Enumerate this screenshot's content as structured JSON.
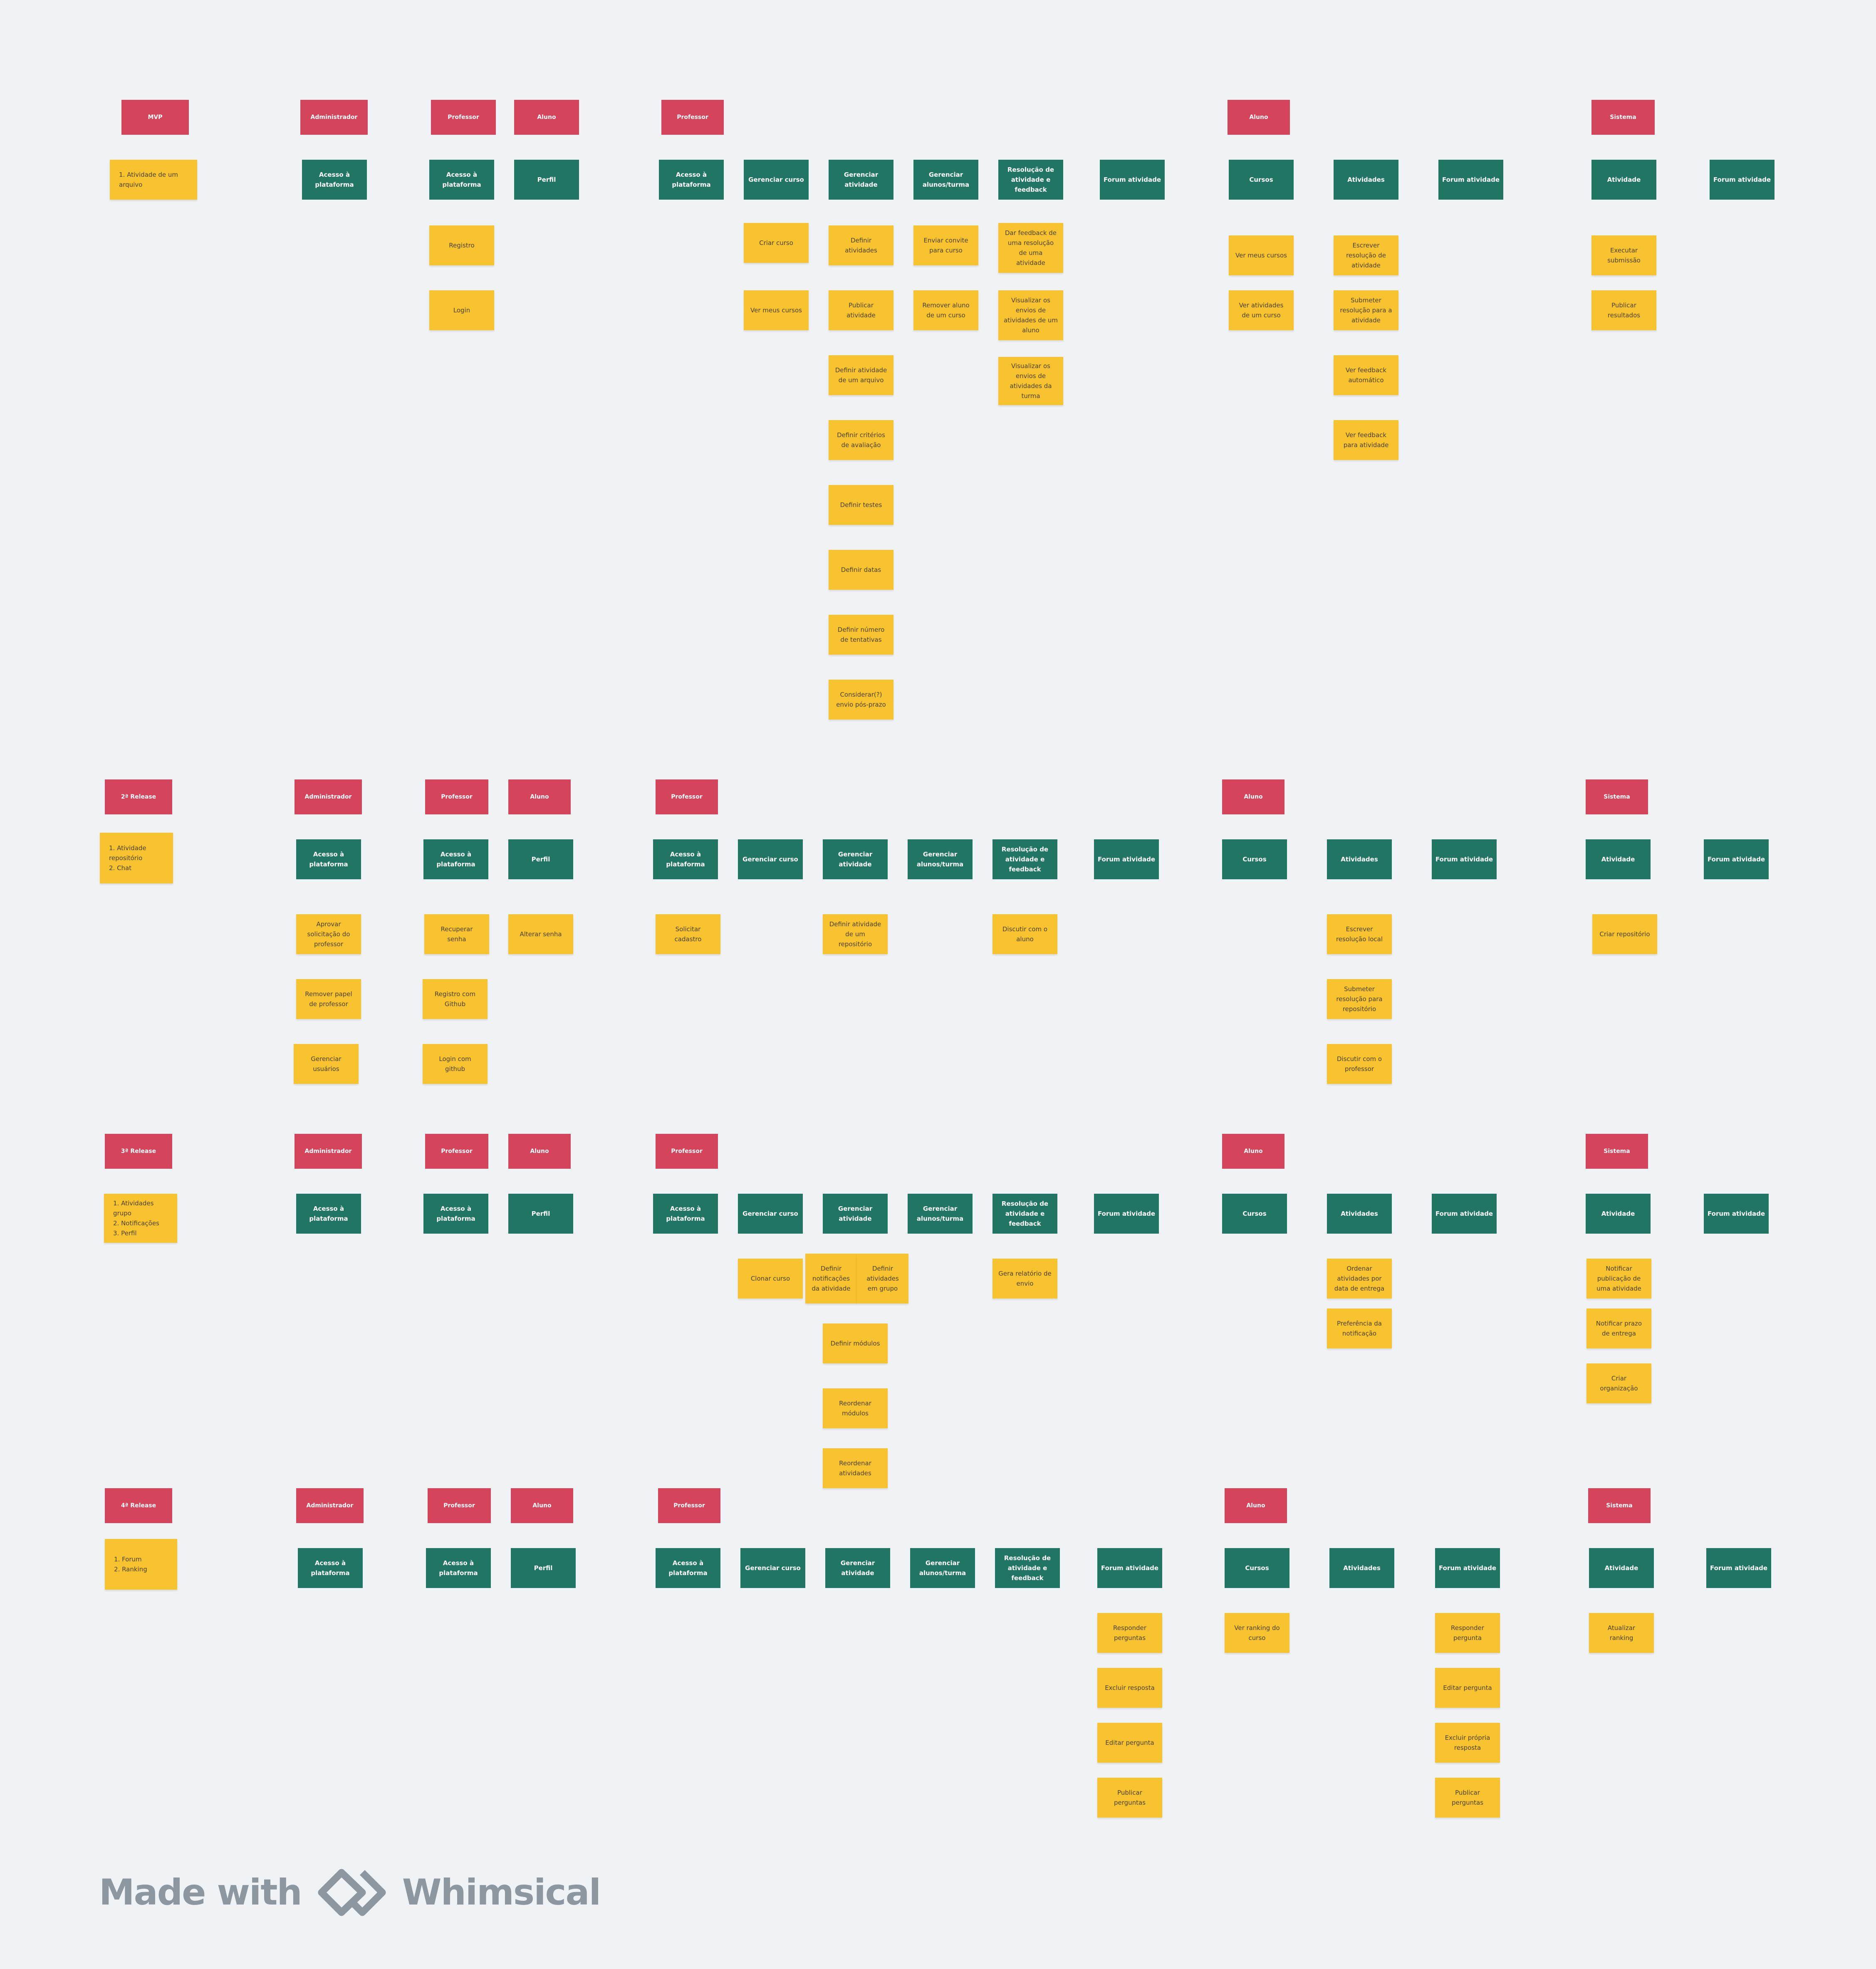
{
  "colors": {
    "background": "#f0f3f6",
    "role": "#d4445a",
    "activity": "#217563",
    "story": "#f7c32e",
    "footer": "#8d979f"
  },
  "notes": [
    {
      "t": "MVP",
      "c": "red"
    },
    {
      "t": "Administrador",
      "c": "red"
    },
    {
      "t": "Professor",
      "c": "red"
    },
    {
      "t": "Aluno",
      "c": "red"
    },
    {
      "t": "Professor",
      "c": "red"
    },
    {
      "t": "Aluno",
      "c": "red"
    },
    {
      "t": "Sistema",
      "c": "red"
    },
    {
      "t": "1.  Atividade de um\narquivo",
      "c": "yellow"
    },
    {
      "t": "Acesso à\nplataforma",
      "c": "green"
    },
    {
      "t": "Acesso à\nplataforma",
      "c": "green"
    },
    {
      "t": "Perfil",
      "c": "green"
    },
    {
      "t": "Acesso à\nplataforma",
      "c": "green"
    },
    {
      "t": "Gerenciar curso",
      "c": "green"
    },
    {
      "t": "Gerenciar\natividade",
      "c": "green"
    },
    {
      "t": "Gerenciar\nalunos/turma",
      "c": "green"
    },
    {
      "t": "Resolução de\natividade e\nfeedback",
      "c": "green"
    },
    {
      "t": "Forum atividade",
      "c": "green"
    },
    {
      "t": "Cursos",
      "c": "green"
    },
    {
      "t": "Atividades",
      "c": "green"
    },
    {
      "t": "Forum atividade",
      "c": "green"
    },
    {
      "t": "Atividade",
      "c": "green"
    },
    {
      "t": "Forum atividade",
      "c": "green"
    },
    {
      "t": "Registro",
      "c": "yellow"
    },
    {
      "t": "Login",
      "c": "yellow"
    },
    {
      "t": "Criar curso",
      "c": "yellow"
    },
    {
      "t": "Ver meus cursos",
      "c": "yellow"
    },
    {
      "t": "Definir\natividades",
      "c": "yellow"
    },
    {
      "t": "Publicar\natividade",
      "c": "yellow"
    },
    {
      "t": "Definir atividade\nde um arquivo",
      "c": "yellow"
    },
    {
      "t": "Definir critérios\nde avaliação",
      "c": "yellow"
    },
    {
      "t": "Definir testes",
      "c": "yellow"
    },
    {
      "t": "Definir datas",
      "c": "yellow"
    },
    {
      "t": "Definir número\nde tentativas",
      "c": "yellow"
    },
    {
      "t": "Considerar(?)\nenvio pós-prazo",
      "c": "yellow"
    },
    {
      "t": "Enviar convite\npara curso",
      "c": "yellow"
    },
    {
      "t": "Remover aluno\nde um curso",
      "c": "yellow"
    },
    {
      "t": "Dar feedback de\numa resolução\nde uma\natividade",
      "c": "yellow"
    },
    {
      "t": "Visualizar os\nenvios de\natividades de um\naluno",
      "c": "yellow"
    },
    {
      "t": "Visualizar os\nenvios de\natividades da\nturma",
      "c": "yellow"
    },
    {
      "t": "Ver meus cursos",
      "c": "yellow"
    },
    {
      "t": "Ver atividades\nde um curso",
      "c": "yellow"
    },
    {
      "t": "Escrever\nresolução de\natividade",
      "c": "yellow"
    },
    {
      "t": "Submeter\nresolução para a\natividade",
      "c": "yellow"
    },
    {
      "t": "Ver feedback\nautomático",
      "c": "yellow"
    },
    {
      "t": "Ver feedback\npara atividade",
      "c": "yellow"
    },
    {
      "t": "Executar\nsubmissão",
      "c": "yellow"
    },
    {
      "t": "Publicar\nresultados",
      "c": "yellow"
    },
    {
      "t": "2ª Release",
      "c": "red"
    },
    {
      "t": "Administrador",
      "c": "red"
    },
    {
      "t": "Professor",
      "c": "red"
    },
    {
      "t": "Aluno",
      "c": "red"
    },
    {
      "t": "Professor",
      "c": "red"
    },
    {
      "t": "Aluno",
      "c": "red"
    },
    {
      "t": "Sistema",
      "c": "red"
    },
    {
      "t": "1.  Atividade\n     repositório\n2.  Chat",
      "c": "yellow"
    },
    {
      "t": "Acesso à\nplataforma",
      "c": "green"
    },
    {
      "t": "Acesso à\nplataforma",
      "c": "green"
    },
    {
      "t": "Perfil",
      "c": "green"
    },
    {
      "t": "Acesso à\nplataforma",
      "c": "green"
    },
    {
      "t": "Gerenciar curso",
      "c": "green"
    },
    {
      "t": "Gerenciar\natividade",
      "c": "green"
    },
    {
      "t": "Gerenciar\nalunos/turma",
      "c": "green"
    },
    {
      "t": "Resolução de\natividade e\nfeedback",
      "c": "green"
    },
    {
      "t": "Forum atividade",
      "c": "green"
    },
    {
      "t": "Cursos",
      "c": "green"
    },
    {
      "t": "Atividades",
      "c": "green"
    },
    {
      "t": "Forum atividade",
      "c": "green"
    },
    {
      "t": "Atividade",
      "c": "green"
    },
    {
      "t": "Forum atividade",
      "c": "green"
    },
    {
      "t": "Aprovar\nsolicitação do\nprofessor",
      "c": "yellow"
    },
    {
      "t": "Remover papel\nde professor",
      "c": "yellow"
    },
    {
      "t": "Gerenciar\nusuários",
      "c": "yellow"
    },
    {
      "t": "Recuperar\nsenha",
      "c": "yellow"
    },
    {
      "t": "Registro com\nGithub",
      "c": "yellow"
    },
    {
      "t": "Login com\ngithub",
      "c": "yellow"
    },
    {
      "t": "Alterar senha",
      "c": "yellow"
    },
    {
      "t": "Solicitar\ncadastro",
      "c": "yellow"
    },
    {
      "t": "Definir atividade\nde um\nrepositório",
      "c": "yellow"
    },
    {
      "t": "Discutir com o\naluno",
      "c": "yellow"
    },
    {
      "t": "Escrever\nresolução local",
      "c": "yellow"
    },
    {
      "t": "Submeter\nresolução  para\nrepositório",
      "c": "yellow"
    },
    {
      "t": "Discutir com o\nprofessor",
      "c": "yellow"
    },
    {
      "t": "Criar repositório",
      "c": "yellow"
    },
    {
      "t": "3ª Release",
      "c": "red"
    },
    {
      "t": "Administrador",
      "c": "red"
    },
    {
      "t": "Professor",
      "c": "red"
    },
    {
      "t": "Aluno",
      "c": "red"
    },
    {
      "t": "Professor",
      "c": "red"
    },
    {
      "t": "Aluno",
      "c": "red"
    },
    {
      "t": "Sistema",
      "c": "red"
    },
    {
      "t": "1.  Atividades\n     grupo\n2.  Notificações\n3.  Perfil",
      "c": "yellow"
    },
    {
      "t": "Acesso à\nplataforma",
      "c": "green"
    },
    {
      "t": "Acesso à\nplataforma",
      "c": "green"
    },
    {
      "t": "Perfil",
      "c": "green"
    },
    {
      "t": "Acesso à\nplataforma",
      "c": "green"
    },
    {
      "t": "Gerenciar curso",
      "c": "green"
    },
    {
      "t": "Gerenciar\natividade",
      "c": "green"
    },
    {
      "t": "Gerenciar\nalunos/turma",
      "c": "green"
    },
    {
      "t": "Resolução de\natividade e\nfeedback",
      "c": "green"
    },
    {
      "t": "Forum atividade",
      "c": "green"
    },
    {
      "t": "Cursos",
      "c": "green"
    },
    {
      "t": "Atividades",
      "c": "green"
    },
    {
      "t": "Forum atividade",
      "c": "green"
    },
    {
      "t": "Atividade",
      "c": "green"
    },
    {
      "t": "Forum atividade",
      "c": "green"
    },
    {
      "t": "Clonar curso",
      "c": "yellow"
    },
    {
      "t": "Definir\nnotificações\nda atividade",
      "c": "yellow"
    },
    {
      "t": "Definir\natividades\nem grupo",
      "c": "yellow"
    },
    {
      "t": "Definir módulos",
      "c": "yellow"
    },
    {
      "t": "Reordenar\nmódulos",
      "c": "yellow"
    },
    {
      "t": "Reordenar\natividades",
      "c": "yellow"
    },
    {
      "t": "Gera relatório de\nenvio",
      "c": "yellow"
    },
    {
      "t": "Ordenar\natividades por\ndata de entrega",
      "c": "yellow"
    },
    {
      "t": "Preferência da\nnotificação",
      "c": "yellow"
    },
    {
      "t": "Notificar\npublicação de\numa atividade",
      "c": "yellow"
    },
    {
      "t": "Notificar prazo\nde entrega",
      "c": "yellow"
    },
    {
      "t": "Criar\norganização",
      "c": "yellow"
    },
    {
      "t": "4ª Release",
      "c": "red"
    },
    {
      "t": "Administrador",
      "c": "red"
    },
    {
      "t": "Professor",
      "c": "red"
    },
    {
      "t": "Aluno",
      "c": "red"
    },
    {
      "t": "Professor",
      "c": "red"
    },
    {
      "t": "Aluno",
      "c": "red"
    },
    {
      "t": "Sistema",
      "c": "red"
    },
    {
      "t": "1.  Forum\n2.  Ranking",
      "c": "yellow"
    },
    {
      "t": "Acesso à\nplataforma",
      "c": "green"
    },
    {
      "t": "Acesso à\nplataforma",
      "c": "green"
    },
    {
      "t": "Perfil",
      "c": "green"
    },
    {
      "t": "Acesso à\nplataforma",
      "c": "green"
    },
    {
      "t": "Gerenciar curso",
      "c": "green"
    },
    {
      "t": "Gerenciar\natividade",
      "c": "green"
    },
    {
      "t": "Gerenciar\nalunos/turma",
      "c": "green"
    },
    {
      "t": "Resolução de\natividade e\nfeedback",
      "c": "green"
    },
    {
      "t": "Forum atividade",
      "c": "green"
    },
    {
      "t": "Cursos",
      "c": "green"
    },
    {
      "t": "Atividades",
      "c": "green"
    },
    {
      "t": "Forum atividade",
      "c": "green"
    },
    {
      "t": "Atividade",
      "c": "green"
    },
    {
      "t": "Forum atividade",
      "c": "green"
    },
    {
      "t": "Responder\nperguntas",
      "c": "yellow"
    },
    {
      "t": "Excluir resposta",
      "c": "yellow"
    },
    {
      "t": "Editar pergunta",
      "c": "yellow"
    },
    {
      "t": "Publicar\nperguntas",
      "c": "yellow"
    },
    {
      "t": "Ver ranking do\ncurso",
      "c": "yellow"
    },
    {
      "t": "Responder\npergunta",
      "c": "yellow"
    },
    {
      "t": "Editar pergunta",
      "c": "yellow"
    },
    {
      "t": "Excluir própria\nresposta",
      "c": "yellow"
    },
    {
      "t": "Publicar\nperguntas",
      "c": "yellow"
    },
    {
      "t": "Atualizar\nranking",
      "c": "yellow"
    }
  ],
  "footer": {
    "made_with": "Made with",
    "brand": "Whimsical"
  }
}
